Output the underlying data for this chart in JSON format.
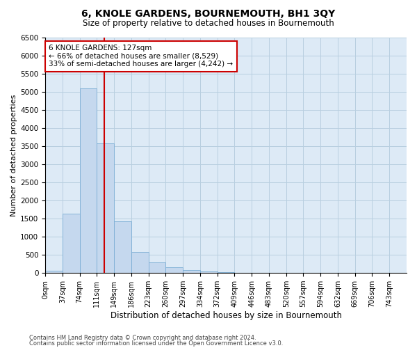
{
  "title": "6, KNOLE GARDENS, BOURNEMOUTH, BH1 3QY",
  "subtitle": "Size of property relative to detached houses in Bournemouth",
  "xlabel": "Distribution of detached houses by size in Bournemouth",
  "ylabel": "Number of detached properties",
  "footnote1": "Contains HM Land Registry data © Crown copyright and database right 2024.",
  "footnote2": "Contains public sector information licensed under the Open Government Licence v3.0.",
  "bar_labels": [
    "0sqm",
    "37sqm",
    "74sqm",
    "111sqm",
    "149sqm",
    "186sqm",
    "223sqm",
    "260sqm",
    "297sqm",
    "334sqm",
    "372sqm",
    "409sqm",
    "446sqm",
    "483sqm",
    "520sqm",
    "557sqm",
    "594sqm",
    "632sqm",
    "669sqm",
    "706sqm",
    "743sqm"
  ],
  "bar_values": [
    60,
    1630,
    5090,
    3580,
    1430,
    580,
    300,
    155,
    80,
    40,
    15,
    8,
    5,
    2,
    1,
    1,
    0,
    0,
    0,
    0,
    0
  ],
  "bar_color": "#c5d8ee",
  "bar_edge_color": "#7aadd4",
  "grid_color": "#b8cfe0",
  "background_color": "#ddeaf6",
  "annotation_text1": "6 KNOLE GARDENS: 127sqm",
  "annotation_text2": "← 66% of detached houses are smaller (8,529)",
  "annotation_text3": "33% of semi-detached houses are larger (4,242) →",
  "annotation_box_facecolor": "#ffffff",
  "annotation_box_edgecolor": "#cc0000",
  "property_line_color": "#cc0000",
  "property_line_x": 3.432,
  "ylim": [
    0,
    6500
  ],
  "yticks": [
    0,
    500,
    1000,
    1500,
    2000,
    2500,
    3000,
    3500,
    4000,
    4500,
    5000,
    5500,
    6000,
    6500
  ]
}
